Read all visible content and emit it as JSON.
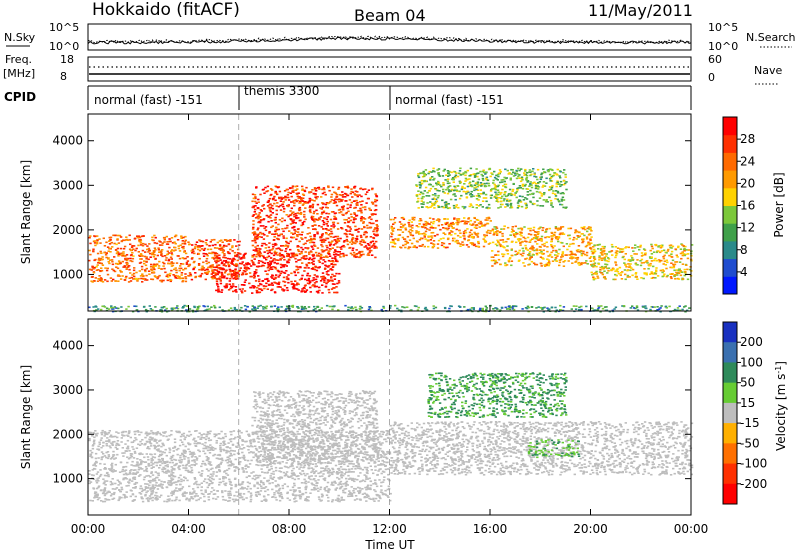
{
  "header": {
    "station": "Hokkaido (fitACF)",
    "beam": "Beam 04",
    "date": "11/May/2011"
  },
  "noise_panel": {
    "left_label": "N.Sky",
    "right_label": "N.Search",
    "ticks": [
      "10^5",
      "10^0"
    ]
  },
  "freq_panel": {
    "left_label_1": "Freq.",
    "left_label_2": "[MHz]",
    "left_ticks": [
      "18",
      "8"
    ],
    "right_label": "Nave",
    "right_ticks": [
      "60",
      "0"
    ]
  },
  "cpid": {
    "label": "CPID",
    "segments": [
      {
        "name": "normal (fast) -151",
        "start": 0,
        "end": 6
      },
      {
        "name": "themis 3300",
        "start": 6,
        "end": 12
      },
      {
        "name": "normal (fast) -151",
        "start": 12,
        "end": 24
      }
    ]
  },
  "chart_data": [
    {
      "type": "heatmap",
      "name": "power-panel",
      "ylabel": "Slant Range [km]",
      "xlabel": "",
      "x_ticks": [
        "00:00",
        "04:00",
        "08:00",
        "12:00",
        "16:00",
        "20:00",
        "00:00"
      ],
      "y_ticks": [
        1000,
        2000,
        3000,
        4000
      ],
      "xlim": [
        0,
        24
      ],
      "ylim": [
        180,
        4600
      ],
      "colorbar": {
        "label": "Power [dB]",
        "ticks": [
          4,
          8,
          12,
          16,
          20,
          24,
          28
        ],
        "range": [
          0,
          32
        ],
        "colors": [
          "#0018ff",
          "#1f4ccf",
          "#2a8a8a",
          "#3fa04a",
          "#7cc83a",
          "#ffd200",
          "#ff9a00",
          "#ff6a00",
          "#ff3000",
          "#ff0000"
        ]
      },
      "regions": [
        {
          "t0": 0.0,
          "t1": 4.0,
          "r_lo": 850,
          "r_hi": 1900,
          "power": 24
        },
        {
          "t0": 4.0,
          "t1": 6.0,
          "r_lo": 900,
          "r_hi": 1800,
          "power": 26
        },
        {
          "t0": 5.0,
          "t1": 10.0,
          "r_lo": 600,
          "r_hi": 1500,
          "power": 30
        },
        {
          "t0": 6.5,
          "t1": 11.5,
          "r_lo": 1400,
          "r_hi": 3000,
          "power": 27
        },
        {
          "t0": 12.0,
          "t1": 16.0,
          "r_lo": 1600,
          "r_hi": 2300,
          "power": 22
        },
        {
          "t0": 16.0,
          "t1": 20.0,
          "r_lo": 1200,
          "r_hi": 2100,
          "power": 20
        },
        {
          "t0": 20.0,
          "t1": 24.0,
          "r_lo": 900,
          "r_hi": 1700,
          "power": 18
        },
        {
          "t0": 13.0,
          "t1": 19.0,
          "r_lo": 2500,
          "r_hi": 3400,
          "power": 14
        },
        {
          "t0": 0.0,
          "t1": 24.0,
          "r_lo": 180,
          "r_hi": 320,
          "power": 10
        }
      ]
    },
    {
      "type": "heatmap",
      "name": "velocity-panel",
      "ylabel": "Slant Range [km]",
      "xlabel": "Time UT",
      "x_ticks": [
        "00:00",
        "04:00",
        "08:00",
        "12:00",
        "16:00",
        "20:00",
        "00:00"
      ],
      "y_ticks": [
        1000,
        2000,
        3000,
        4000
      ],
      "xlim": [
        0,
        24
      ],
      "ylim": [
        180,
        4600
      ],
      "colorbar": {
        "label": "Velocity [m s^-1]",
        "ticks": [
          200,
          100,
          50,
          15,
          -15,
          -50,
          -100,
          -200
        ],
        "colors": [
          "#1830c0",
          "#3a70b0",
          "#2e8a5a",
          "#66cc33",
          "#bdbdbd",
          "#ffb000",
          "#ff7000",
          "#ff3000",
          "#ff0000"
        ]
      },
      "regions": [
        {
          "t0": 0.0,
          "t1": 12.0,
          "r_lo": 500,
          "r_hi": 2100,
          "velocity": 0
        },
        {
          "t0": 6.5,
          "t1": 11.5,
          "r_lo": 1400,
          "r_hi": 3000,
          "velocity": 0
        },
        {
          "t0": 12.0,
          "t1": 24.0,
          "r_lo": 1100,
          "r_hi": 2300,
          "velocity": 0
        },
        {
          "t0": 13.5,
          "t1": 19.0,
          "r_lo": 2400,
          "r_hi": 3400,
          "velocity": 60
        },
        {
          "t0": 17.5,
          "t1": 19.5,
          "r_lo": 1500,
          "r_hi": 1900,
          "velocity": 40
        }
      ]
    }
  ]
}
